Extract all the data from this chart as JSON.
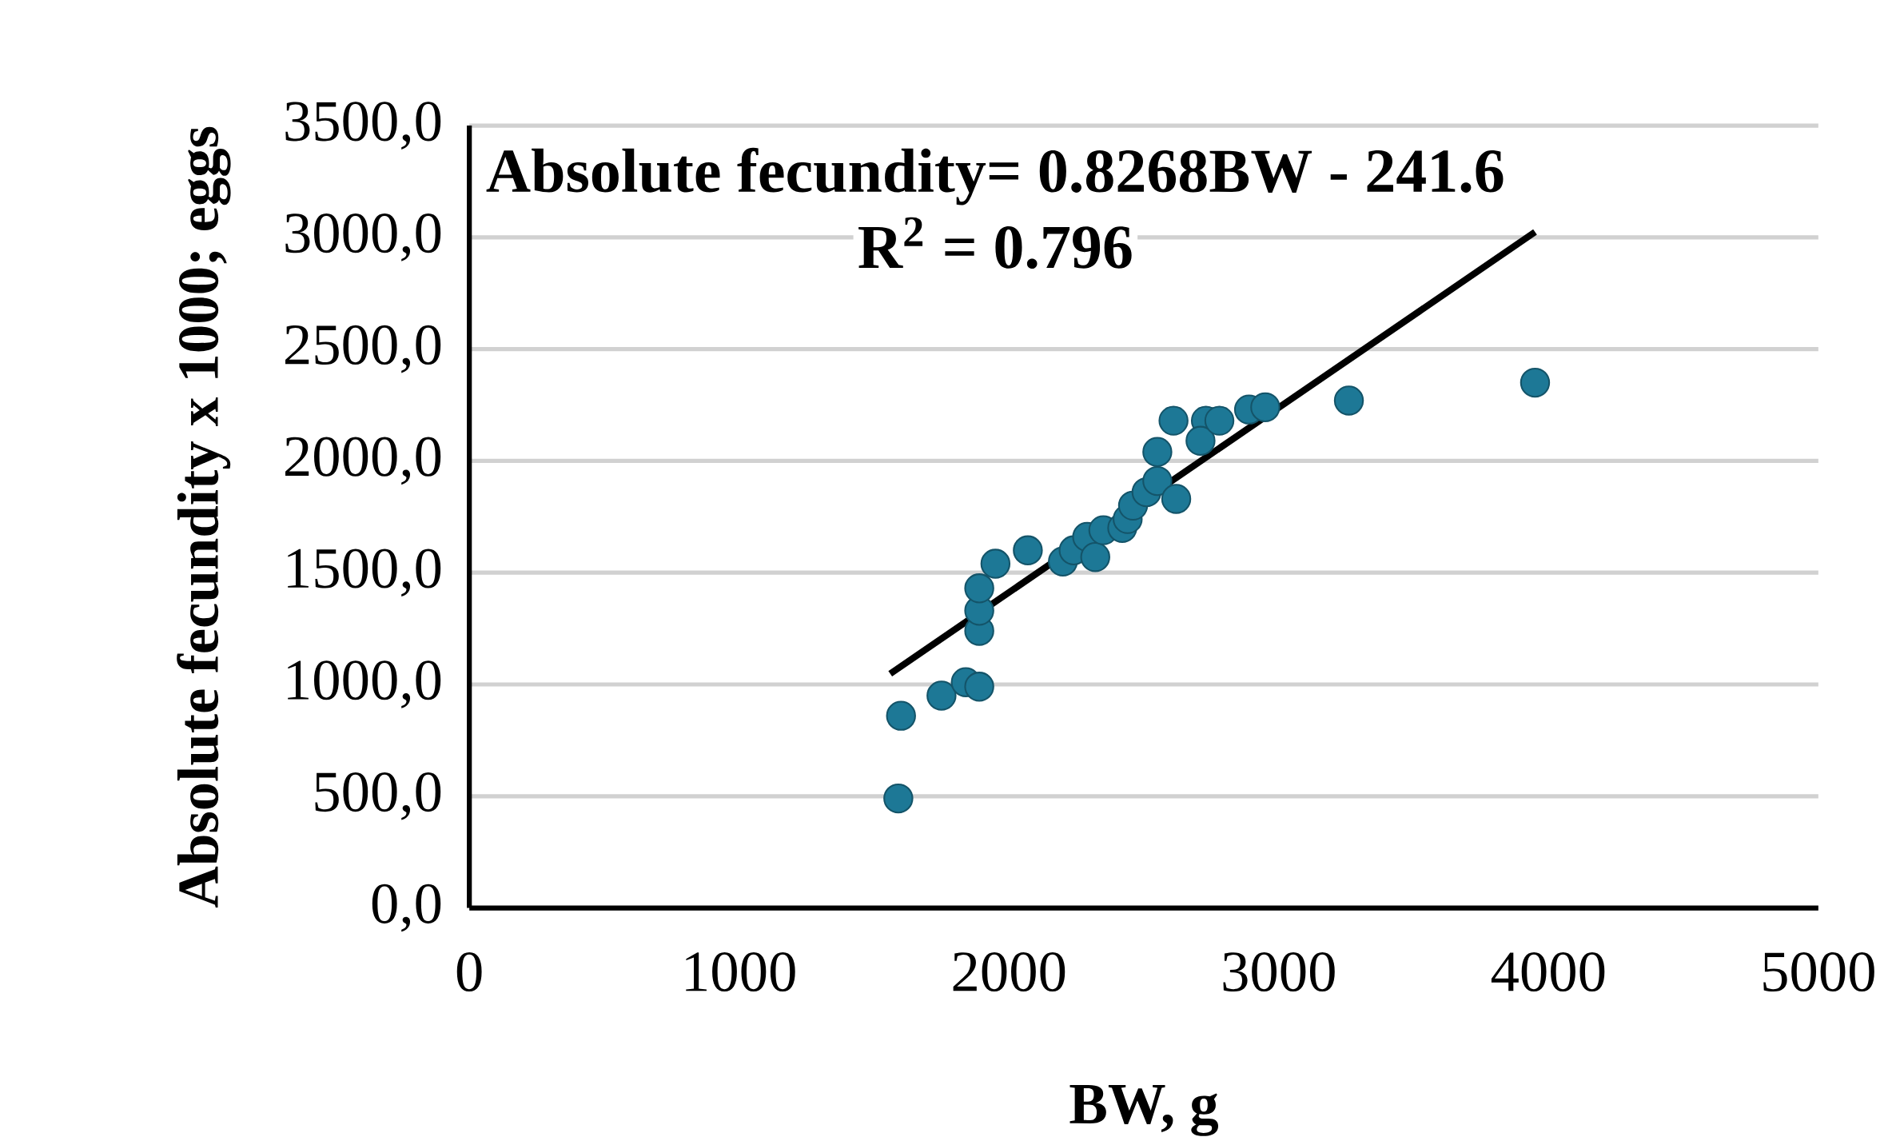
{
  "chart_data": {
    "type": "scatter",
    "xlabel": "BW, g",
    "ylabel": "Absolute fecundity x 1000; eggs",
    "xlim": [
      0,
      5000
    ],
    "xticks": [
      0,
      1000,
      2000,
      3000,
      4000,
      5000
    ],
    "ylim": [
      0,
      3500
    ],
    "yticks": [
      {
        "value": 0,
        "label": "0,0"
      },
      {
        "value": 500,
        "label": "500,0"
      },
      {
        "value": 1000,
        "label": "1000,0"
      },
      {
        "value": 1500,
        "label": "1500,0"
      },
      {
        "value": 2000,
        "label": "2000,0"
      },
      {
        "value": 2500,
        "label": "2500,0"
      },
      {
        "value": 3000,
        "label": "3000,0"
      },
      {
        "value": 3500,
        "label": "3500,0"
      }
    ],
    "grid": "y",
    "marker": "circle",
    "series": [
      {
        "color": "#1d7896",
        "x": [
          1590,
          1600,
          1750,
          1840,
          1890,
          1890,
          1890,
          1890,
          1950,
          2070,
          2200,
          2240,
          2290,
          2320,
          2350,
          2420,
          2440,
          2460,
          2510,
          2550,
          2550,
          2620,
          2610,
          2730,
          2710,
          2780,
          2890,
          2950,
          3260,
          3950
        ],
        "values": [
          490,
          860,
          950,
          1010,
          990,
          1240,
          1330,
          1430,
          1540,
          1600,
          1550,
          1600,
          1660,
          1570,
          1690,
          1700,
          1740,
          1800,
          1860,
          1910,
          2040,
          1830,
          2180,
          2180,
          2090,
          2180,
          2230,
          2240,
          2270,
          2350
        ]
      },
      {
        "type": "line",
        "color": "#000000",
        "marker": "none",
        "x": [
          1560,
          3950
        ],
        "values": [
          1048,
          3024
        ]
      }
    ],
    "annotations": [
      "Absolute fecundity= 0.8268BW - 241.6",
      "R$^{2}$ = 0.796"
    ]
  }
}
